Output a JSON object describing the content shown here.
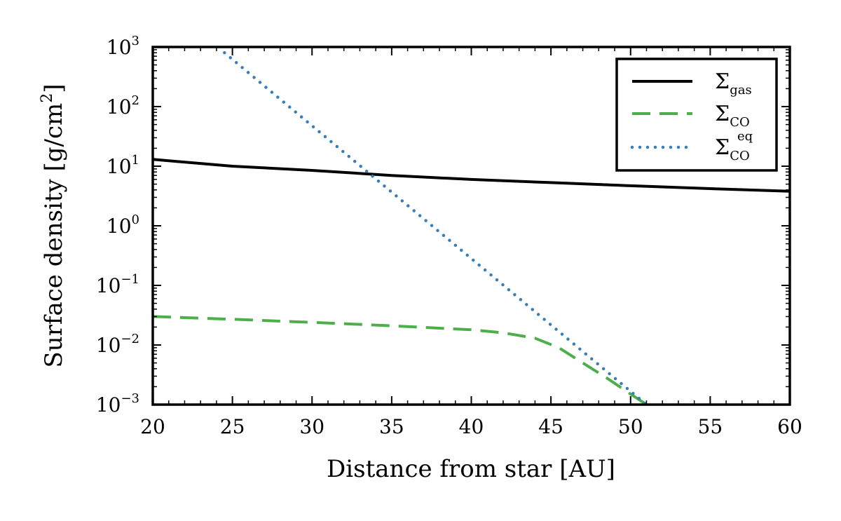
{
  "chart_data": {
    "type": "line",
    "xlabel": "Distance from star [AU]",
    "ylabel": "Surface density [g/cm²]",
    "ylabel_parts": {
      "main": "Surface density [g/cm",
      "sup": "2",
      "end": "]"
    },
    "xlim": [
      20,
      60
    ],
    "ylim": [
      0.001,
      1000
    ],
    "yscale": "log",
    "grid": false,
    "legend_position": "top-right",
    "x_ticks": [
      20,
      25,
      30,
      35,
      40,
      45,
      50,
      55,
      60
    ],
    "y_ticks": [
      {
        "base": "10",
        "exp": "3"
      },
      {
        "base": "10",
        "exp": "2"
      },
      {
        "base": "10",
        "exp": "1"
      },
      {
        "base": "10",
        "exp": "0"
      },
      {
        "base": "10",
        "exp": "−1"
      },
      {
        "base": "10",
        "exp": "−2"
      },
      {
        "base": "10",
        "exp": "−3"
      }
    ],
    "series": [
      {
        "name": "Σgas",
        "label_main": "Σ",
        "label_sub": "gas",
        "label_sup": "",
        "color": "#000000",
        "style": "solid",
        "x": [
          20,
          25,
          30,
          35,
          40,
          45,
          50,
          55,
          60
        ],
        "y": [
          13,
          10,
          8.5,
          7.0,
          6.0,
          5.3,
          4.7,
          4.2,
          3.8
        ]
      },
      {
        "name": "ΣCO",
        "label_main": "Σ",
        "label_sub": "CO",
        "label_sup": "",
        "color": "#4daf4a",
        "style": "dashed",
        "x": [
          20,
          25,
          30,
          35,
          40,
          42,
          44,
          45.5,
          47,
          48.5,
          50,
          51
        ],
        "y": [
          0.03,
          0.027,
          0.024,
          0.021,
          0.018,
          0.016,
          0.013,
          0.009,
          0.005,
          0.0028,
          0.0015,
          0.001
        ]
      },
      {
        "name": "ΣCOeq",
        "label_main": "Σ",
        "label_sub": "CO",
        "label_sup": "eq",
        "color": "#377eb8",
        "style": "dotted",
        "x": [
          24.5,
          51
        ],
        "y": [
          800,
          0.001
        ]
      }
    ]
  }
}
